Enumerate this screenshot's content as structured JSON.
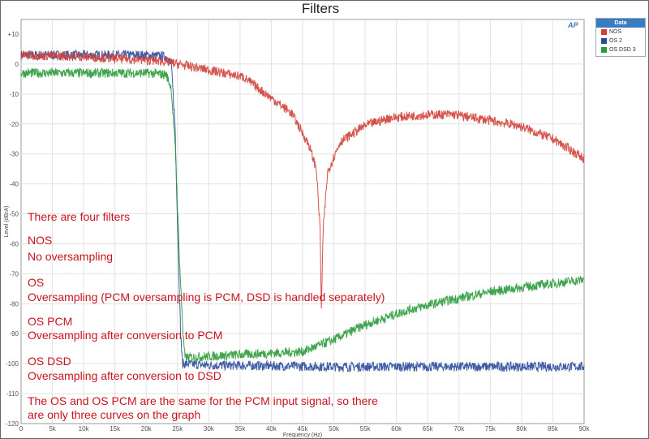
{
  "chart_data": {
    "type": "line",
    "title": "Filters",
    "xlabel": "Frequency (Hz)",
    "ylabel": "Level (dBrA)",
    "xlim": [
      0,
      90000
    ],
    "ylim": [
      -120,
      10
    ],
    "grid": true,
    "x_ticks": [
      "0",
      "5k",
      "10k",
      "15k",
      "20k",
      "25k",
      "30k",
      "35k",
      "40k",
      "45k",
      "50k",
      "55k",
      "60k",
      "65k",
      "70k",
      "75k",
      "80k",
      "85k",
      "90k"
    ],
    "y_ticks": [
      "+10",
      "0",
      "-10",
      "-20",
      "-30",
      "-40",
      "-50",
      "-60",
      "-70",
      "-80",
      "-90",
      "-100",
      "-110",
      "-120"
    ],
    "legend": {
      "title": "Data",
      "placement": "top-right outside",
      "entries": [
        "NOS",
        "OS 2",
        "OS DSD 3"
      ]
    },
    "series": [
      {
        "name": "NOS",
        "color": "#d0403a",
        "points": [
          [
            0,
            3
          ],
          [
            10000,
            2.5
          ],
          [
            22600,
            1
          ],
          [
            29000,
            -1.6
          ],
          [
            35500,
            -4.3
          ],
          [
            43300,
            -16.5
          ],
          [
            46000,
            -27
          ],
          [
            47200,
            -35
          ],
          [
            47800,
            -55
          ],
          [
            48000,
            -82
          ],
          [
            48300,
            -55
          ],
          [
            49000,
            -36
          ],
          [
            51000,
            -26
          ],
          [
            55000,
            -20.5
          ],
          [
            58900,
            -18
          ],
          [
            64000,
            -17
          ],
          [
            69000,
            -16.8
          ],
          [
            74000,
            -18.5
          ],
          [
            79600,
            -20.6
          ],
          [
            85000,
            -25
          ],
          [
            90000,
            -31.5
          ]
        ]
      },
      {
        "name": "OS 2",
        "color": "#2a4a9a",
        "points": [
          [
            0,
            3
          ],
          [
            10000,
            3
          ],
          [
            20000,
            3
          ],
          [
            23200,
            2.5
          ],
          [
            24000,
            0
          ],
          [
            24600,
            -20
          ],
          [
            25100,
            -60
          ],
          [
            25500,
            -90
          ],
          [
            25800,
            -100
          ],
          [
            30000,
            -100.5
          ],
          [
            50000,
            -101
          ],
          [
            70000,
            -101
          ],
          [
            90000,
            -101
          ]
        ]
      },
      {
        "name": "OS DSD 3",
        "color": "#2a9a3a",
        "points": [
          [
            0,
            -3
          ],
          [
            10000,
            -3
          ],
          [
            20000,
            -3
          ],
          [
            23200,
            -3.5
          ],
          [
            24000,
            -8
          ],
          [
            24700,
            -30
          ],
          [
            25300,
            -65
          ],
          [
            25900,
            -90
          ],
          [
            26200,
            -98
          ],
          [
            35000,
            -97
          ],
          [
            45000,
            -96
          ],
          [
            50000,
            -92
          ],
          [
            55000,
            -87
          ],
          [
            62000,
            -82
          ],
          [
            68000,
            -79
          ],
          [
            75000,
            -76
          ],
          [
            82000,
            -74
          ],
          [
            90000,
            -72
          ]
        ]
      }
    ]
  },
  "logo": "AP",
  "annotations": [
    {
      "text": "There are four filters",
      "key": "a0"
    },
    {
      "text": "NOS",
      "key": "a1"
    },
    {
      "text": "No oversampling",
      "key": "a2"
    },
    {
      "text": "OS",
      "key": "a3"
    },
    {
      "text": "Oversampling (PCM oversampling is PCM, DSD is handled separately)",
      "key": "a4"
    },
    {
      "text": "OS PCM",
      "key": "a5"
    },
    {
      "text": "Oversampling after conversion to PCM",
      "key": "a6"
    },
    {
      "text": "OS DSD",
      "key": "a7"
    },
    {
      "text": "Oversampling after conversion to DSD",
      "key": "a8"
    },
    {
      "text": "The OS and OS PCM are the same for the PCM input signal, so there",
      "key": "a9"
    },
    {
      "text": "are only three curves on the graph",
      "key": "a10"
    }
  ]
}
